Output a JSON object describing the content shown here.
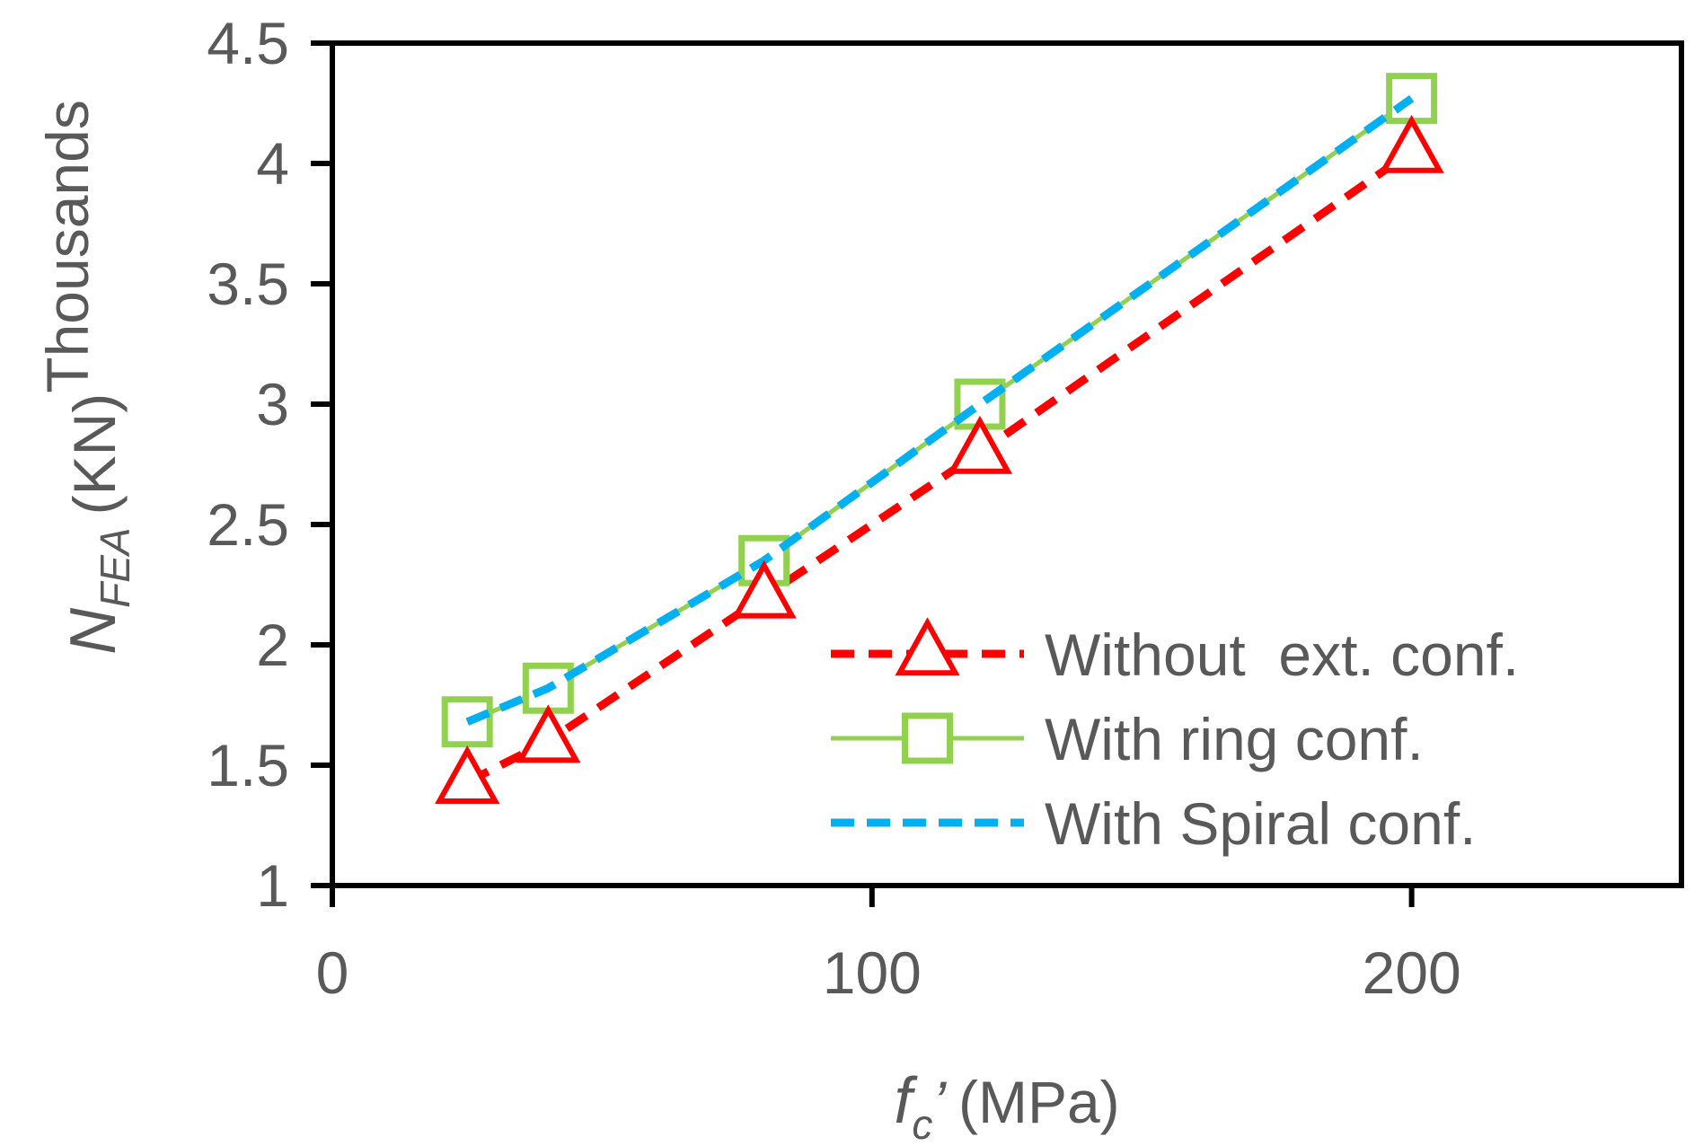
{
  "chart_data": {
    "type": "line",
    "title": "",
    "xlabel": {
      "symbol": "f",
      "subscript": "c",
      "prime": "’",
      "unit": "(MPa)"
    },
    "ylabel": {
      "symbol": "N",
      "subscript": "FEA",
      "unit": "(KN)",
      "multiplier": "Thousands"
    },
    "xlim": [
      0,
      250
    ],
    "ylim": [
      1,
      4.5
    ],
    "x_ticks": [
      0,
      100,
      200
    ],
    "x_tick_labels": [
      "0",
      "100",
      "200"
    ],
    "y_ticks": [
      1,
      1.5,
      2,
      2.5,
      3,
      3.5,
      4,
      4.5
    ],
    "y_tick_labels": [
      "1",
      "1.5",
      "2",
      "2.5",
      "3",
      "3.5",
      "4",
      "4.5"
    ],
    "grid": false,
    "legend_position": "bottom-right",
    "series": [
      {
        "name": "Without  ext. conf.",
        "color": "#ff0000",
        "line_style": "dashed",
        "marker": "triangle",
        "x": [
          25,
          40,
          80,
          120,
          200
        ],
        "y": [
          1.43,
          1.6,
          2.2,
          2.8,
          4.05
        ]
      },
      {
        "name": "With ring conf.",
        "color": "#92d050",
        "line_style": "solid",
        "marker": "square",
        "x": [
          25,
          40,
          80,
          120,
          200
        ],
        "y": [
          1.68,
          1.82,
          2.35,
          3.0,
          4.27
        ]
      },
      {
        "name": "With Spiral conf.",
        "color": "#00b0f0",
        "line_style": "dashed",
        "marker": "none",
        "x": [
          25,
          40,
          80,
          120,
          200
        ],
        "y": [
          1.68,
          1.82,
          2.35,
          3.0,
          4.27
        ]
      }
    ]
  }
}
